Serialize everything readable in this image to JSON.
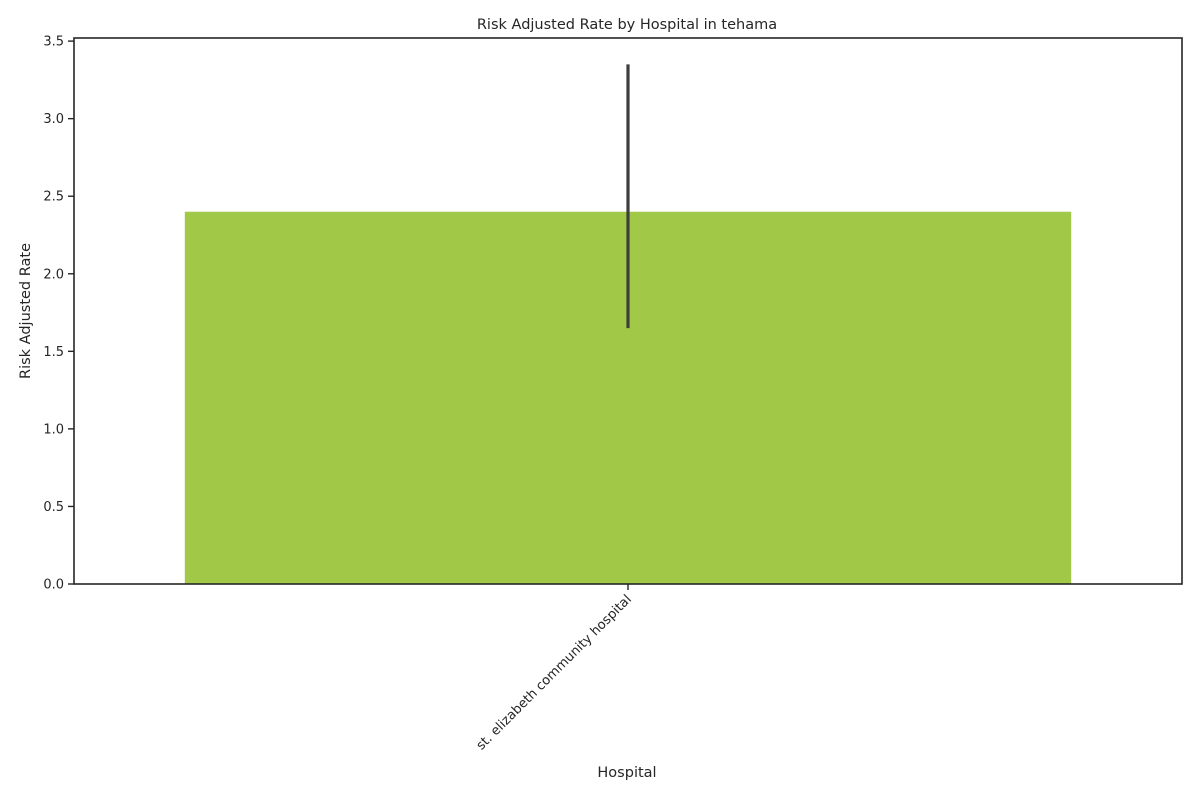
{
  "chart_data": {
    "type": "bar",
    "title": "Risk Adjusted Rate by Hospital in tehama",
    "xlabel": "Hospital",
    "ylabel": "Risk Adjusted Rate",
    "categories": [
      "st. elizabeth community hospital"
    ],
    "values": [
      2.4
    ],
    "error_bars": [
      [
        1.65,
        3.35
      ]
    ],
    "ylim": [
      0,
      3.52
    ],
    "yticks": [
      0.0,
      0.5,
      1.0,
      1.5,
      2.0,
      2.5,
      3.0,
      3.5
    ],
    "ytick_labels": [
      "0.0",
      "0.5",
      "1.0",
      "1.5",
      "2.0",
      "2.5",
      "3.0",
      "3.5"
    ],
    "grid": false,
    "colors": {
      "bar": "#a1c947",
      "errorbar": "#3d3d3d",
      "axis": "#262626"
    }
  }
}
